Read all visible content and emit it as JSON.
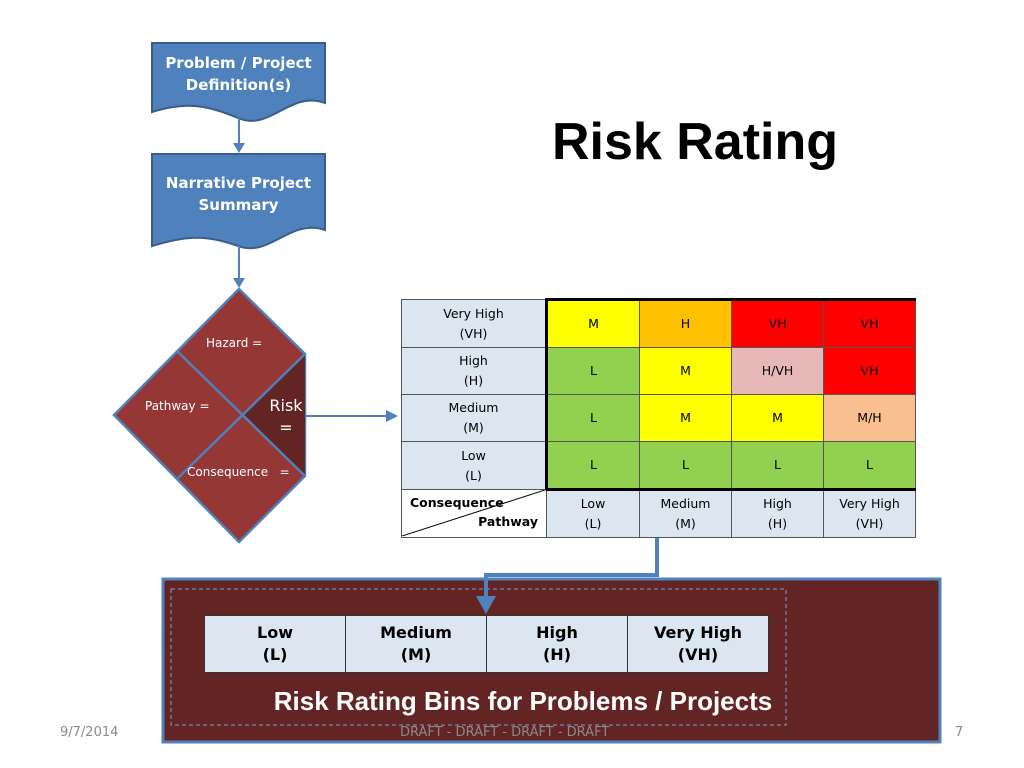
{
  "title": "Risk Rating",
  "flow": {
    "box1": [
      "Problem / Project",
      "Definition(s)"
    ],
    "box2": [
      "Narrative Project",
      "Summary"
    ],
    "hazard": "Hazard =",
    "pathway": "Pathway =",
    "consequence": "Consequence   =",
    "risk": [
      "Risk",
      "="
    ]
  },
  "matrix": {
    "rows": [
      {
        "header": [
          "Very High",
          "(VH)"
        ],
        "cells": [
          "M",
          "H",
          "VH",
          "VH"
        ]
      },
      {
        "header": [
          "High",
          "(H)"
        ],
        "cells": [
          "L",
          "M",
          "H/VH",
          "VH"
        ]
      },
      {
        "header": [
          "Medium",
          "(M)"
        ],
        "cells": [
          "L",
          "M",
          "M",
          "M/H"
        ]
      },
      {
        "header": [
          "Low",
          "(L)"
        ],
        "cells": [
          "L",
          "L",
          "L",
          "L"
        ]
      }
    ],
    "corner_top": "Consequence",
    "corner_bottom": "Pathway",
    "columns": [
      [
        "Low",
        "(L)"
      ],
      [
        "Medium",
        "(M)"
      ],
      [
        "High",
        "(H)"
      ],
      [
        "Very High",
        "(VH)"
      ]
    ],
    "colors": {
      "green": "#92d050",
      "yellow": "#ffff00",
      "orange": "#ffc000",
      "red": "#ff0000",
      "pink": "#e6b8b7",
      "peach": "#fabf8f",
      "header_bg": "#dce6f1"
    }
  },
  "bins": {
    "items": [
      [
        "Low",
        "(L)"
      ],
      [
        "Medium",
        "(M)"
      ],
      [
        "High",
        "(H)"
      ],
      [
        "Very High",
        "(VH)"
      ]
    ],
    "title": "Risk Rating Bins for Problems / Projects"
  },
  "footer": {
    "date": "9/7/2014",
    "draft": "DRAFT - DRAFT - DRAFT - DRAFT",
    "page": "7"
  }
}
